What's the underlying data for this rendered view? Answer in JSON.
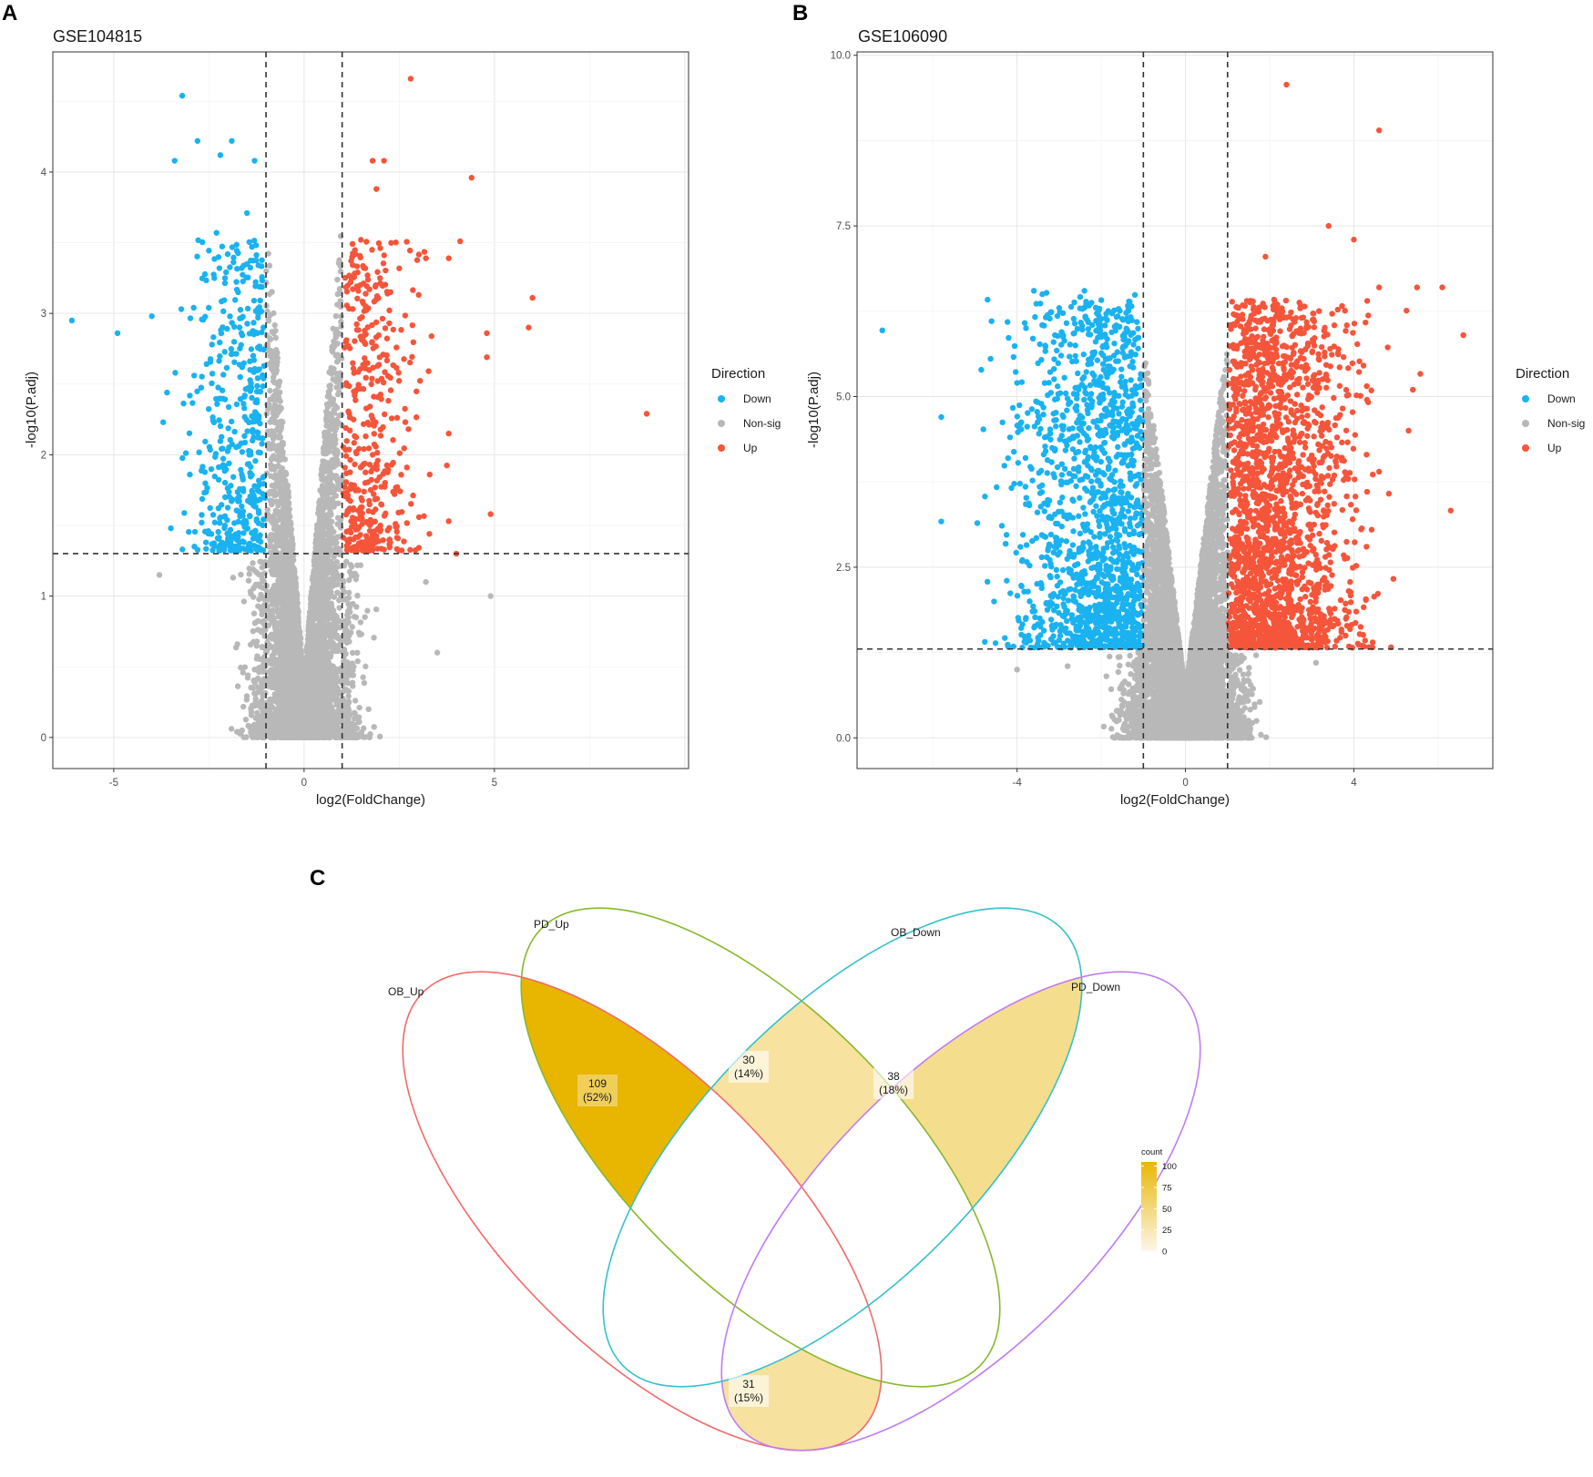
{
  "panels": {
    "a": "A",
    "b": "B",
    "c": "C"
  },
  "colors": {
    "down": "#1ab2f0",
    "nonsig": "#b8b8b8",
    "up": "#f5553a",
    "ob_up": "#f26a6a",
    "pd_up": "#86b82a",
    "ob_down": "#33c1cc",
    "pd_down": "#c07cf0",
    "fill_high": "#e9b705",
    "fill_low": "#fdf6ea"
  },
  "chart_data": [
    {
      "type": "scatter",
      "id": "volcano-a",
      "title": "GSE104815",
      "xlabel": "log2(FoldChange)",
      "ylabel": "-log10(P.adj)",
      "xlim": [
        -6.6,
        10.1
      ],
      "ylim": [
        -0.22,
        4.85
      ],
      "xticks": [
        -5,
        0,
        5
      ],
      "yticks": [
        0,
        1,
        2,
        3,
        4
      ],
      "thresholds": {
        "x": [
          -1,
          1
        ],
        "y": 1.301
      },
      "legend": {
        "title": "Direction",
        "entries": [
          "Down",
          "Non-sig",
          "Up"
        ],
        "position": "right"
      },
      "labeled_points": {
        "down": [
          [
            -6.1,
            2.95
          ],
          [
            -4.9,
            2.86
          ],
          [
            -4.0,
            2.98
          ],
          [
            -3.6,
            2.44
          ],
          [
            -3.7,
            2.23
          ],
          [
            -3.5,
            1.48
          ],
          [
            -3.2,
            4.54
          ],
          [
            -3.4,
            4.08
          ],
          [
            -2.8,
            4.22
          ],
          [
            -2.2,
            4.12
          ],
          [
            -1.9,
            4.22
          ],
          [
            -1.3,
            4.08
          ],
          [
            -3.0,
            1.86
          ],
          [
            -2.9,
            3.04
          ],
          [
            -2.3,
            3.57
          ],
          [
            -1.5,
            3.71
          ]
        ],
        "up": [
          [
            2.8,
            4.66
          ],
          [
            1.8,
            4.08
          ],
          [
            2.1,
            4.08
          ],
          [
            4.4,
            3.96
          ],
          [
            1.9,
            3.88
          ],
          [
            3.2,
            3.39
          ],
          [
            4.1,
            3.51
          ],
          [
            3.8,
            3.39
          ],
          [
            6.0,
            3.11
          ],
          [
            5.9,
            2.9
          ],
          [
            4.8,
            2.86
          ],
          [
            4.8,
            2.69
          ],
          [
            3.8,
            2.15
          ],
          [
            3.3,
            1.86
          ],
          [
            3.8,
            1.53
          ],
          [
            4.9,
            1.58
          ],
          [
            9.0,
            2.29
          ],
          [
            4.0,
            1.3
          ]
        ],
        "nonsig": [
          [
            4.9,
            1.0
          ],
          [
            3.5,
            0.6
          ],
          [
            -3.8,
            1.15
          ],
          [
            3.2,
            1.1
          ]
        ]
      },
      "dense_region": {
        "down_count_approx": 450,
        "up_count_approx": 420,
        "nonsig_count_approx": 6000
      }
    },
    {
      "type": "scatter",
      "id": "volcano-b",
      "title": "GSE106090",
      "xlabel": "log2(FoldChange)",
      "ylabel": "-log10(P.adj)",
      "xlim": [
        -7.8,
        7.3
      ],
      "ylim": [
        -0.45,
        10.05
      ],
      "xticks": [
        -4,
        0,
        4
      ],
      "yticks": [
        0.0,
        2.5,
        5.0,
        7.5,
        10.0
      ],
      "ytick_labels": [
        "0.0",
        "2.5",
        "5.0",
        "7.5",
        "10.0"
      ],
      "thresholds": {
        "x": [
          -1,
          1
        ],
        "y": 1.301
      },
      "legend": {
        "title": "Direction",
        "entries": [
          "Down",
          "Non-sig",
          "Up"
        ],
        "position": "right"
      },
      "labeled_points": {
        "down": [
          [
            -7.2,
            5.97
          ],
          [
            -5.8,
            4.7
          ],
          [
            -5.8,
            3.17
          ],
          [
            -4.8,
            4.52
          ],
          [
            -4.7,
            6.42
          ],
          [
            -4.2,
            5.86
          ],
          [
            -4.0,
            5.2
          ],
          [
            -3.9,
            4.52
          ],
          [
            -3.8,
            4.1
          ],
          [
            -3.9,
            2.23
          ],
          [
            -3.7,
            2.0
          ],
          [
            -3.6,
            6.55
          ],
          [
            -3.4,
            6.5
          ],
          [
            -3.3,
            6.52
          ],
          [
            -3.1,
            5.9
          ],
          [
            -2.5,
            6.46
          ],
          [
            -2.4,
            6.55
          ],
          [
            -1.2,
            6.49
          ]
        ],
        "up": [
          [
            2.4,
            9.57
          ],
          [
            4.6,
            8.9
          ],
          [
            1.9,
            7.05
          ],
          [
            3.4,
            7.5
          ],
          [
            4.0,
            7.3
          ],
          [
            4.6,
            6.6
          ],
          [
            5.5,
            6.6
          ],
          [
            6.1,
            6.6
          ],
          [
            6.6,
            5.9
          ],
          [
            5.4,
            5.1
          ],
          [
            5.3,
            4.5
          ],
          [
            4.6,
            3.9
          ],
          [
            6.3,
            3.33
          ],
          [
            4.3,
            2.8
          ],
          [
            4.2,
            1.35
          ],
          [
            3.3,
            1.5
          ]
        ],
        "nonsig": [
          [
            -4.0,
            1.0
          ],
          [
            3.1,
            1.1
          ],
          [
            -2.8,
            1.05
          ]
        ]
      },
      "dense_region": {
        "down_count_approx": 1500,
        "up_count_approx": 2100,
        "nonsig_count_approx": 9000
      }
    },
    {
      "type": "venn",
      "id": "venn-c",
      "sets": [
        "OB_Up",
        "PD_Up",
        "OB_Down",
        "PD_Down"
      ],
      "regions": [
        {
          "sets": [
            "OB_Up",
            "PD_Up"
          ],
          "count": 109,
          "label": "109",
          "percent": "(52%)"
        },
        {
          "sets": [
            "PD_Up",
            "OB_Down"
          ],
          "count": 30,
          "label": "30",
          "percent": "(14%)"
        },
        {
          "sets": [
            "OB_Down",
            "PD_Down"
          ],
          "count": 38,
          "label": "38",
          "percent": "(18%)"
        },
        {
          "sets": [
            "OB_Up",
            "PD_Down"
          ],
          "count": 31,
          "label": "31",
          "percent": "(15%)"
        }
      ],
      "colorbar": {
        "title": "count",
        "ticks": [
          "100",
          "75",
          "50",
          "25",
          "0"
        ],
        "tick_values": [
          100,
          75,
          50,
          25,
          0
        ],
        "range": [
          0,
          105
        ]
      }
    }
  ]
}
